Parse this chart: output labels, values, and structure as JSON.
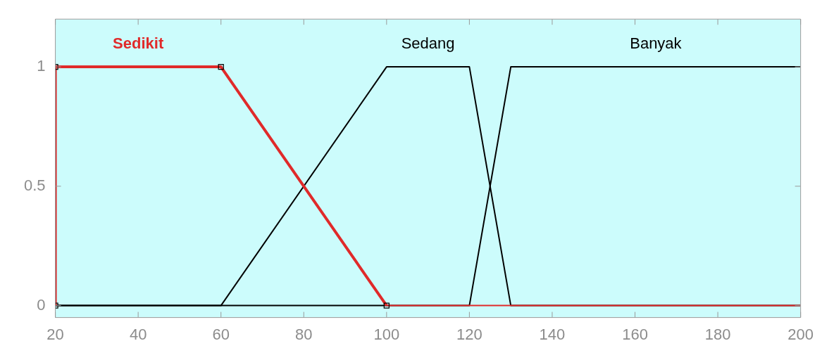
{
  "chart_data": {
    "type": "line",
    "xlim": [
      20,
      200
    ],
    "xticks": [
      20,
      40,
      60,
      80,
      100,
      120,
      140,
      160,
      180,
      200
    ],
    "ylim": [
      -0.05,
      1.2
    ],
    "yticks": [
      0,
      0.5,
      1
    ],
    "grid": false,
    "legend": false,
    "line_style": "solid",
    "series": [
      {
        "name": "Sedikit",
        "color": "#e02a2a",
        "x": [
          20,
          20,
          60,
          100
        ],
        "values": [
          0,
          1,
          1,
          0
        ],
        "marker": "square"
      },
      {
        "color": "#e02a2a",
        "x": [
          100,
          200
        ],
        "values": [
          0,
          0
        ],
        "marker": "none"
      },
      {
        "name": "Sedang",
        "color": "#000000",
        "x": [
          20,
          60,
          100,
          120,
          130,
          200
        ],
        "values": [
          0,
          0,
          1,
          1,
          0,
          0
        ],
        "marker": "none"
      },
      {
        "name": "Banyak",
        "color": "#000000",
        "x": [
          20,
          120,
          130,
          200
        ],
        "values": [
          0,
          0,
          1,
          1
        ],
        "marker": "none"
      }
    ]
  }
}
